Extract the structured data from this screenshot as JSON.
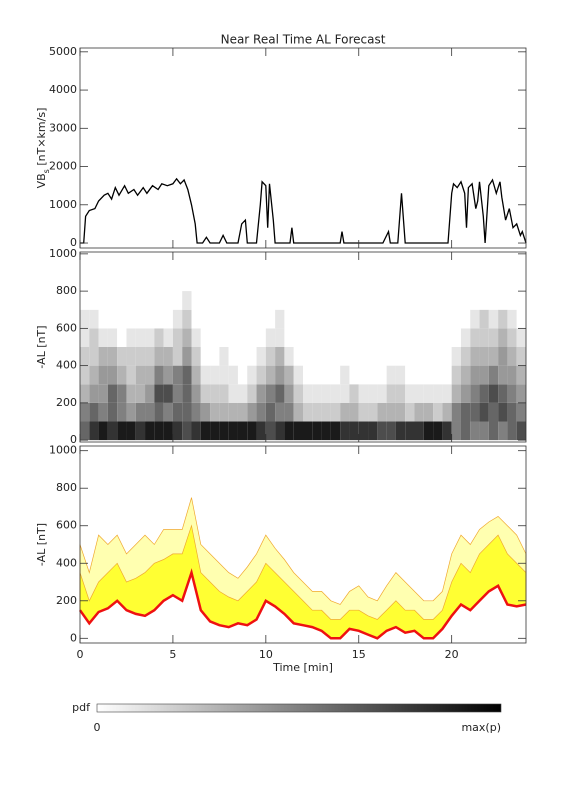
{
  "chart_data": [
    {
      "type": "line",
      "title": "Near Real Time AL Forecast",
      "ylabel": [
        "VB",
        "s",
        " [nT×km/s]"
      ],
      "xlim": [
        0,
        24
      ],
      "xticks": [
        0,
        5,
        10,
        15,
        20
      ],
      "ylim": [
        -130,
        5100
      ],
      "yticks": [
        0,
        1000,
        2000,
        3000,
        4000,
        5000
      ],
      "color": "#000000",
      "x": [
        0,
        0.2,
        0.3,
        0.5,
        0.8,
        1.0,
        1.3,
        1.5,
        1.7,
        1.9,
        2.1,
        2.4,
        2.6,
        2.9,
        3.1,
        3.4,
        3.6,
        3.9,
        4.2,
        4.4,
        4.7,
        5.0,
        5.2,
        5.4,
        5.6,
        5.8,
        6.0,
        6.2,
        6.3,
        6.6,
        6.8,
        7.0,
        7.5,
        7.7,
        7.9,
        8.5,
        8.7,
        8.9,
        9.0,
        9.5,
        9.7,
        9.8,
        10.0,
        10.1,
        10.2,
        10.4,
        10.5,
        11.3,
        11.4,
        11.5,
        14.0,
        14.1,
        14.2,
        16.3,
        16.6,
        16.7,
        17.1,
        17.3,
        17.5,
        19.8,
        20.0,
        20.1,
        20.3,
        20.5,
        20.7,
        20.8,
        20.9,
        21.1,
        21.3,
        21.4,
        21.5,
        21.7,
        21.8,
        22.0,
        22.2,
        22.4,
        22.6,
        22.7,
        22.9,
        23.1,
        23.3,
        23.5,
        23.7,
        23.8,
        24
      ],
      "values": [
        0,
        0,
        700,
        850,
        900,
        1100,
        1250,
        1300,
        1150,
        1450,
        1250,
        1500,
        1300,
        1400,
        1250,
        1450,
        1300,
        1500,
        1400,
        1550,
        1500,
        1550,
        1680,
        1550,
        1650,
        1400,
        1000,
        500,
        0,
        0,
        150,
        0,
        0,
        200,
        0,
        0,
        500,
        600,
        0,
        0,
        1000,
        1600,
        1500,
        400,
        1550,
        600,
        0,
        0,
        400,
        0,
        0,
        300,
        0,
        0,
        300,
        0,
        0,
        1300,
        0,
        0,
        1300,
        1550,
        1450,
        1600,
        1300,
        400,
        1450,
        1550,
        900,
        1100,
        1600,
        700,
        0,
        1500,
        1650,
        1300,
        1600,
        1200,
        600,
        900,
        400,
        500,
        200,
        300,
        0
      ]
    },
    {
      "type": "heatmap",
      "ylabel": "-AL [nT]",
      "xlim": [
        0,
        24
      ],
      "xticks": [
        0,
        5,
        10,
        15,
        20
      ],
      "ylim": [
        -10,
        1010
      ],
      "yticks": [
        0,
        200,
        400,
        600,
        800,
        1000
      ],
      "colormap": [
        "#ffffff",
        "#000000"
      ],
      "x_edges": [
        0,
        0.5,
        1,
        1.5,
        2,
        2.5,
        3,
        3.5,
        4,
        4.5,
        5,
        5.5,
        6,
        6.5,
        7,
        7.5,
        8,
        8.5,
        9,
        9.5,
        10,
        10.5,
        11,
        11.5,
        12,
        12.5,
        13,
        13.5,
        14,
        14.5,
        15,
        15.5,
        16,
        16.5,
        17,
        17.5,
        18,
        18.5,
        19,
        19.5,
        20,
        20.5,
        21,
        21.5,
        22,
        22.5,
        23,
        23.5,
        24
      ],
      "y_edges": [
        0,
        100,
        200,
        300,
        400,
        500,
        600,
        700,
        800
      ],
      "z": [
        [
          0.6,
          0.8,
          0.9,
          0.8,
          0.9,
          0.9,
          0.8,
          0.9,
          0.9,
          0.9,
          0.8,
          0.7,
          0.8,
          0.9,
          0.9,
          0.9,
          0.9,
          0.9,
          0.9,
          0.8,
          0.7,
          0.8,
          0.9,
          0.9,
          0.9,
          0.9,
          0.9,
          0.9,
          0.8,
          0.8,
          0.8,
          0.8,
          0.7,
          0.7,
          0.8,
          0.8,
          0.8,
          0.9,
          0.9,
          0.8,
          0.5,
          0.6,
          0.5,
          0.5,
          0.6,
          0.5,
          0.6,
          0.7
        ],
        [
          0.5,
          0.6,
          0.5,
          0.6,
          0.5,
          0.4,
          0.5,
          0.5,
          0.6,
          0.5,
          0.6,
          0.6,
          0.5,
          0.4,
          0.3,
          0.3,
          0.3,
          0.3,
          0.4,
          0.5,
          0.6,
          0.5,
          0.5,
          0.3,
          0.2,
          0.2,
          0.2,
          0.2,
          0.3,
          0.3,
          0.2,
          0.2,
          0.3,
          0.3,
          0.3,
          0.2,
          0.3,
          0.3,
          0.2,
          0.3,
          0.5,
          0.6,
          0.6,
          0.7,
          0.6,
          0.7,
          0.6,
          0.5
        ],
        [
          0.3,
          0.4,
          0.4,
          0.6,
          0.5,
          0.3,
          0.3,
          0.4,
          0.7,
          0.7,
          0.5,
          0.6,
          0.4,
          0.2,
          0.2,
          0.2,
          0.1,
          0.1,
          0.2,
          0.4,
          0.5,
          0.6,
          0.4,
          0.2,
          0.1,
          0.1,
          0.1,
          0.1,
          0.1,
          0.2,
          0.1,
          0.1,
          0.1,
          0.2,
          0.2,
          0.1,
          0.1,
          0.1,
          0.1,
          0.1,
          0.3,
          0.4,
          0.5,
          0.6,
          0.7,
          0.6,
          0.5,
          0.4
        ],
        [
          0.2,
          0.3,
          0.4,
          0.4,
          0.3,
          0.2,
          0.3,
          0.3,
          0.5,
          0.4,
          0.5,
          0.6,
          0.3,
          0.1,
          0.1,
          0.1,
          0.1,
          0,
          0.1,
          0.2,
          0.3,
          0.4,
          0.3,
          0.1,
          0,
          0,
          0,
          0,
          0.1,
          0,
          0,
          0,
          0,
          0.1,
          0.1,
          0,
          0,
          0,
          0,
          0,
          0.2,
          0.3,
          0.4,
          0.4,
          0.5,
          0.4,
          0.4,
          0.3
        ],
        [
          0.2,
          0.2,
          0.3,
          0.3,
          0.2,
          0.2,
          0.2,
          0.2,
          0.3,
          0.3,
          0.2,
          0.4,
          0.2,
          0,
          0,
          0.1,
          0,
          0,
          0,
          0.1,
          0.2,
          0.3,
          0.1,
          0,
          0,
          0,
          0,
          0,
          0,
          0,
          0,
          0,
          0,
          0,
          0,
          0,
          0,
          0,
          0,
          0,
          0.1,
          0.2,
          0.3,
          0.3,
          0.3,
          0.4,
          0.3,
          0.2
        ],
        [
          0.1,
          0.2,
          0.1,
          0.1,
          0,
          0.1,
          0.1,
          0.1,
          0.2,
          0.1,
          0.2,
          0.3,
          0.1,
          0,
          0,
          0,
          0,
          0,
          0,
          0,
          0.1,
          0.1,
          0,
          0,
          0,
          0,
          0,
          0,
          0,
          0,
          0,
          0,
          0,
          0,
          0,
          0,
          0,
          0,
          0,
          0,
          0,
          0.1,
          0.2,
          0.2,
          0.2,
          0.3,
          0.2,
          0.1
        ],
        [
          0.1,
          0.1,
          0,
          0,
          0,
          0,
          0,
          0,
          0,
          0,
          0.1,
          0.2,
          0,
          0,
          0,
          0,
          0,
          0,
          0,
          0,
          0,
          0.1,
          0,
          0,
          0,
          0,
          0,
          0,
          0,
          0,
          0,
          0,
          0,
          0,
          0,
          0,
          0,
          0,
          0,
          0,
          0,
          0,
          0.1,
          0.2,
          0.1,
          0.2,
          0.1,
          0
        ],
        [
          0,
          0,
          0,
          0,
          0,
          0,
          0,
          0,
          0,
          0,
          0,
          0.1,
          0,
          0,
          0,
          0,
          0,
          0,
          0,
          0,
          0,
          0,
          0,
          0,
          0,
          0,
          0,
          0,
          0,
          0,
          0,
          0,
          0,
          0,
          0,
          0,
          0,
          0,
          0,
          0,
          0,
          0,
          0,
          0,
          0,
          0,
          0,
          0
        ]
      ]
    },
    {
      "type": "band",
      "ylabel": "-AL [nT]",
      "xlabel": "Time [min]",
      "xlim": [
        0,
        24
      ],
      "xticks": [
        0,
        5,
        10,
        15,
        20
      ],
      "ylim": [
        -25,
        1025
      ],
      "yticks": [
        0,
        200,
        400,
        600,
        800,
        1000
      ],
      "x": [
        0,
        0.5,
        1,
        1.5,
        2,
        2.5,
        3,
        3.5,
        4,
        4.5,
        5,
        5.5,
        6,
        6.5,
        7,
        7.5,
        8,
        8.5,
        9,
        9.5,
        10,
        10.5,
        11,
        11.5,
        12,
        12.5,
        13,
        13.5,
        14,
        14.5,
        15,
        15.5,
        16,
        16.5,
        17,
        17.5,
        18,
        18.5,
        19,
        19.5,
        20,
        20.5,
        21,
        21.5,
        22,
        22.5,
        23,
        23.5,
        24
      ],
      "series": [
        {
          "color": "#ee1111",
          "values": [
            150,
            80,
            140,
            160,
            200,
            150,
            130,
            120,
            150,
            200,
            230,
            200,
            350,
            150,
            90,
            70,
            60,
            80,
            70,
            100,
            200,
            170,
            130,
            80,
            70,
            60,
            40,
            0,
            0,
            50,
            40,
            20,
            0,
            40,
            60,
            30,
            40,
            0,
            0,
            50,
            120,
            180,
            150,
            200,
            250,
            280,
            180,
            170,
            180
          ]
        },
        {
          "color": "#ffffb0",
          "values": [
            500,
            350,
            550,
            500,
            550,
            450,
            500,
            550,
            500,
            580,
            580,
            580,
            750,
            500,
            450,
            400,
            350,
            320,
            380,
            450,
            550,
            480,
            420,
            350,
            300,
            250,
            250,
            200,
            180,
            250,
            280,
            220,
            200,
            280,
            350,
            300,
            250,
            200,
            200,
            250,
            450,
            550,
            500,
            580,
            620,
            650,
            600,
            550,
            450
          ]
        },
        {
          "color": "#ffff33",
          "values": [
            350,
            200,
            300,
            350,
            400,
            300,
            320,
            350,
            400,
            420,
            450,
            450,
            600,
            350,
            300,
            250,
            220,
            200,
            250,
            300,
            400,
            350,
            300,
            250,
            200,
            150,
            150,
            100,
            100,
            150,
            150,
            120,
            100,
            150,
            200,
            150,
            150,
            100,
            100,
            150,
            300,
            400,
            350,
            450,
            500,
            550,
            450,
            400,
            350
          ]
        }
      ]
    }
  ],
  "colorbar": {
    "label": "pdf",
    "min_label": "0",
    "max_label": "max(p)"
  }
}
